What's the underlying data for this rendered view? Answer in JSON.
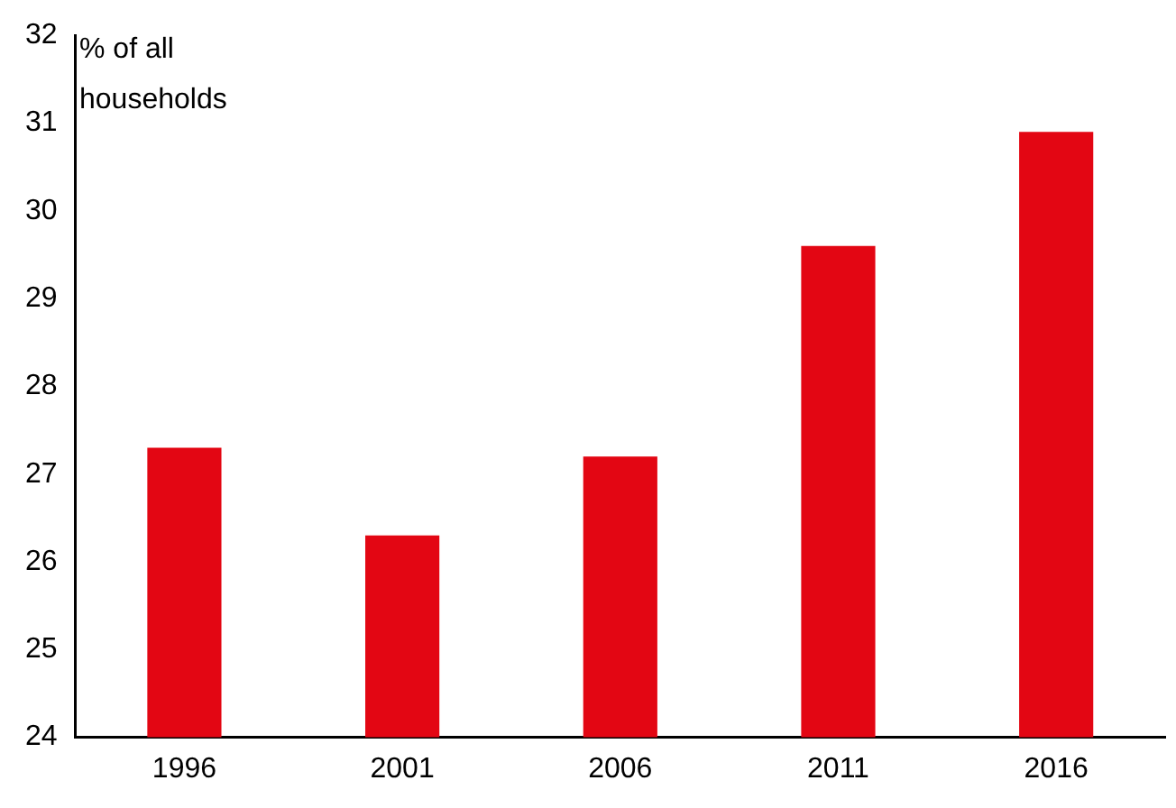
{
  "chart_data": {
    "type": "bar",
    "ylabel": "% of all households",
    "categories": [
      "1996",
      "2001",
      "2006",
      "2011",
      "2016"
    ],
    "values": [
      27.3,
      26.3,
      27.2,
      29.6,
      30.9
    ],
    "color": "#e30613",
    "ylim": [
      24,
      32
    ],
    "yticks": [
      24,
      25,
      26,
      27,
      28,
      29,
      30,
      31,
      32
    ],
    "grid": false,
    "legend": false
  }
}
